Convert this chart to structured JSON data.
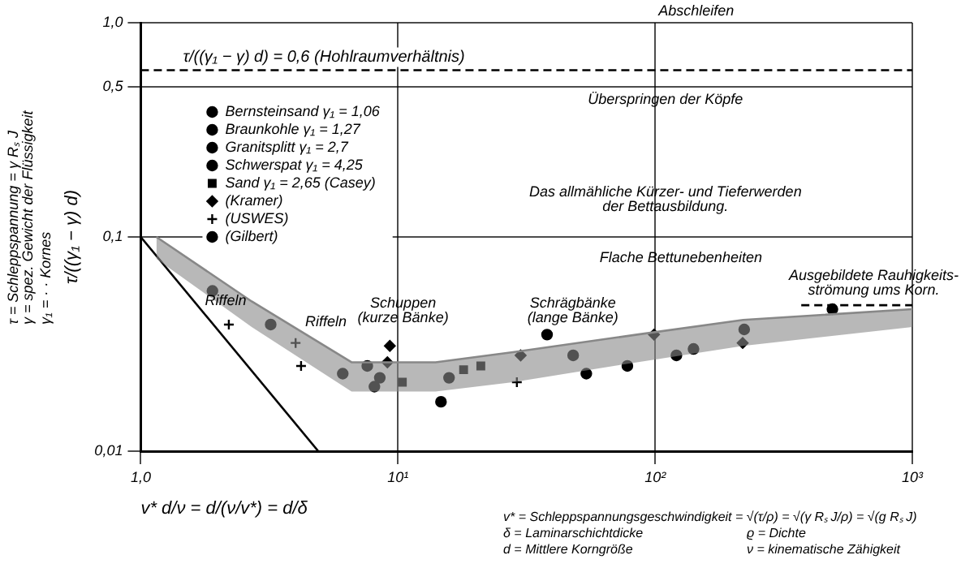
{
  "chart_data": {
    "type": "scatter",
    "xlabel": "v* d/ν = d/(ν/v*) = d/δ",
    "ylabel": "τ/((γ₁ − γ) d)",
    "log": "xy",
    "xlim": [
      1,
      1000
    ],
    "ylim": [
      0.01,
      1
    ],
    "xticks": [
      {
        "value": 1,
        "label": "1,0"
      },
      {
        "value": 10,
        "label": "10¹"
      },
      {
        "value": 100,
        "label": "10²"
      },
      {
        "value": 1000,
        "label": "10³"
      }
    ],
    "yticks": [
      {
        "value": 0.01,
        "label": "0,01"
      },
      {
        "value": 0.1,
        "label": "0,1"
      },
      {
        "value": 0.5,
        "label": "0,5"
      },
      {
        "value": 1,
        "label": "1,0"
      }
    ],
    "grid": true,
    "legend": "top left",
    "series": [
      {
        "type": "line",
        "color": "#888888",
        "line_style": "solid",
        "x": [
          1.15,
          2.7,
          6.6,
          14,
          28,
          85,
          220,
          1000
        ],
        "values": [
          0.1,
          0.05,
          0.026,
          0.026,
          0.029,
          0.035,
          0.041,
          0.046
        ],
        "lower": [
          0.079,
          0.038,
          0.019,
          0.019,
          0.021,
          0.026,
          0.031,
          0.038
        ],
        "upper": [
          0.1,
          0.05,
          0.026,
          0.026,
          0.029,
          0.035,
          0.041,
          0.046
        ]
      },
      {
        "type": "line",
        "color": "#000000",
        "line_style": "solid",
        "x": [
          1,
          4.9
        ],
        "values": [
          0.1,
          0.01
        ]
      },
      {
        "type": "line",
        "color": "#000000",
        "line_style": "dashed",
        "x": [
          370,
          1000
        ],
        "values": [
          0.048,
          0.048
        ]
      },
      {
        "name": "Bernsteinsand γ₁ = 1,06",
        "color": "#000000",
        "marker": "circle",
        "x": [
          1.9,
          15.8,
          48,
          54,
          78
        ],
        "values": [
          0.056,
          0.022,
          0.028,
          0.023,
          0.025
        ]
      },
      {
        "name": "Braunkohle γ₁ = 1,27",
        "color": "#000000",
        "marker": "circle",
        "x": [
          6.1,
          14.7,
          38,
          141,
          222,
          489
        ],
        "values": [
          0.023,
          0.017,
          0.035,
          0.03,
          0.037,
          0.046
        ]
      },
      {
        "name": "Granitsplitt γ₁ = 2,7",
        "color": "#000000",
        "marker": "circle",
        "x": [
          7.6,
          8.5
        ],
        "values": [
          0.025,
          0.022
        ]
      },
      {
        "name": "Schwerspat γ₁ = 4,25",
        "color": "#000000",
        "marker": "circle",
        "x": [
          8.1,
          121
        ],
        "values": [
          0.02,
          0.028
        ]
      },
      {
        "name": "Sand γ₁ = 2,65 (Casey)",
        "color": "#000000",
        "marker": "square",
        "x": [
          10.4,
          18,
          21
        ],
        "values": [
          0.021,
          0.024,
          0.025
        ]
      },
      {
        "name": "(Kramer)",
        "color": "#000000",
        "marker": "diamond",
        "x": [
          9.1,
          9.3,
          30,
          99,
          219
        ],
        "values": [
          0.026,
          0.031,
          0.028,
          0.035,
          0.032
        ]
      },
      {
        "name": "(USWES)",
        "color": "#000000",
        "marker": "cross",
        "x": [
          2.2,
          4,
          4.2,
          29
        ],
        "values": [
          0.039,
          0.032,
          0.025,
          0.021
        ]
      },
      {
        "name": "(Gilbert)",
        "color": "#000000",
        "marker": "circle",
        "x": [
          3.2
        ],
        "values": [
          0.039
        ]
      }
    ],
    "ref_lines": [
      {
        "axis": "y",
        "value": 0.6,
        "label": "τ/((γ₁ − γ) d) = 0,6 (Hohlraumverhältnis)",
        "line_style": "dashed"
      }
    ],
    "annotations": [
      "Abschleifen",
      "Überspringen der Köpfe",
      "Das allmähliche Kürzer- und Tieferwerden\nder Bettausbildung.",
      "Riffeln",
      "Riffeln",
      "Schuppen\n(kurze Bänke)",
      "Schrägbänke\n(lange Bänke)",
      "Flache Bettunebenheiten",
      "Ausgebildete Rauhigkeits-\nströmung ums Korn.",
      "τ = Schleppspannung = γ Rₛ J",
      "γ = spez. Gewicht der Flüssigkeit",
      "γ₁ = · · Kornes",
      "v* = Schleppspannungsgeschwindigkeit = √(τ/ρ) = √(γ Rₛ J/ρ) = √(g Rₛ J)",
      "δ = Laminarschichtdicke",
      "ϱ = Dichte",
      "d = Mittlere Korngröße",
      "ν = kinematische Zähigkeit"
    ]
  }
}
